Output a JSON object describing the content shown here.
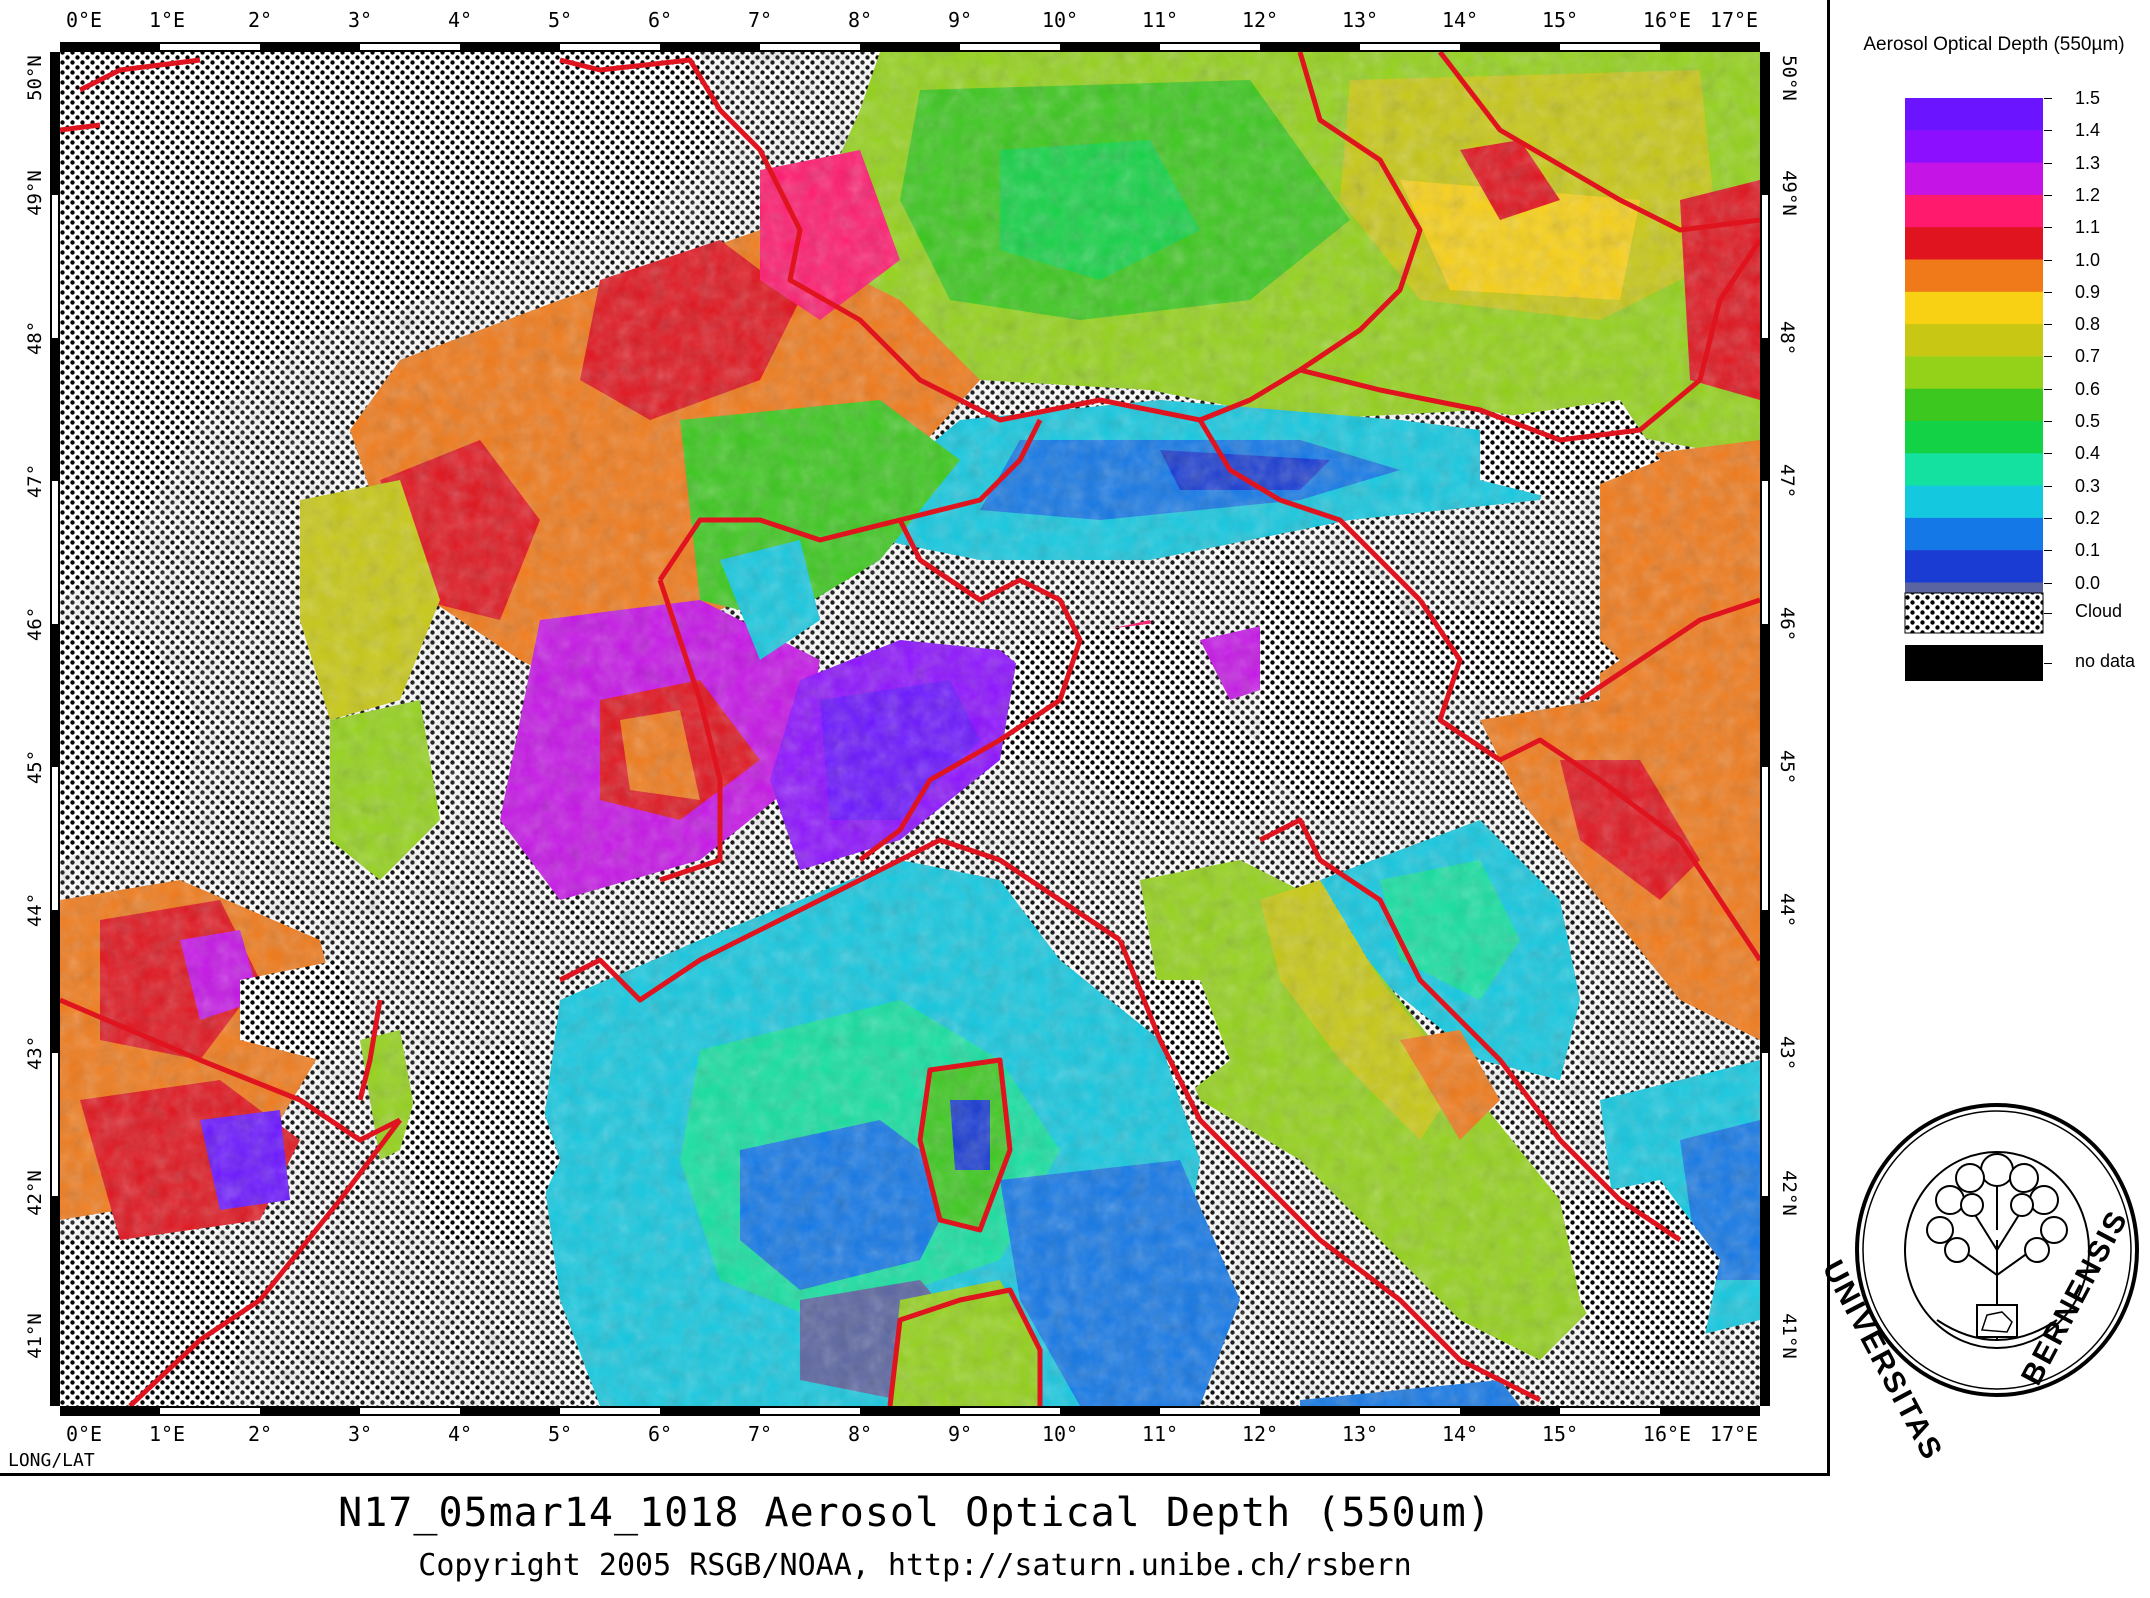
{
  "map": {
    "longitude_ticks": [
      "0°E",
      "1°E",
      "2°",
      "3°",
      "4°",
      "5°",
      "6°",
      "7°",
      "8°",
      "9°",
      "10°",
      "11°",
      "12°",
      "13°",
      "14°",
      "15°",
      "16°E",
      "17°E"
    ],
    "latitude_ticks": [
      "50°N",
      "49°N",
      "48°",
      "47°",
      "46°",
      "45°",
      "44°",
      "43°",
      "42°N",
      "41°N"
    ],
    "corner_label": "LONG/LAT",
    "longitude_range": [
      0,
      17
    ],
    "latitude_range": [
      41,
      50
    ],
    "cloud_fill": "dotted pattern",
    "border_color": "#e0141e"
  },
  "legend": {
    "title": "Aerosol Optical Depth (550µm)",
    "scale": [
      {
        "value": "1.5",
        "color": "#6a14ff"
      },
      {
        "value": "1.4",
        "color": "#8c10ff"
      },
      {
        "value": "1.3",
        "color": "#c514e6"
      },
      {
        "value": "1.2",
        "color": "#ff1a6e"
      },
      {
        "value": "1.1",
        "color": "#e0141e"
      },
      {
        "value": "1.0",
        "color": "#f07a1a"
      },
      {
        "value": "0.9",
        "color": "#f8d014"
      },
      {
        "value": "0.8",
        "color": "#c8c814"
      },
      {
        "value": "0.7",
        "color": "#94d21a"
      },
      {
        "value": "0.6",
        "color": "#3cc81e"
      },
      {
        "value": "0.5",
        "color": "#14d246"
      },
      {
        "value": "0.4",
        "color": "#14e0a0"
      },
      {
        "value": "0.3",
        "color": "#14c8e0"
      },
      {
        "value": "0.2",
        "color": "#1478e6"
      },
      {
        "value": "0.1",
        "color": "#1a3cd2"
      },
      {
        "value": "0.0",
        "color": "#5a64a0"
      }
    ],
    "cloud_label": "Cloud",
    "nodata_label": "no data"
  },
  "title": "N17_05mar14_1018 Aerosol Optical Depth (550um)",
  "copyright": "Copyright 2005 RSGB/NOAA, http://saturn.unibe.ch/rsbern",
  "seal": {
    "text_left": "UNIVERSITAS",
    "text_right": "BERNENSIS",
    "icon": "university-seal-tree-icon"
  }
}
